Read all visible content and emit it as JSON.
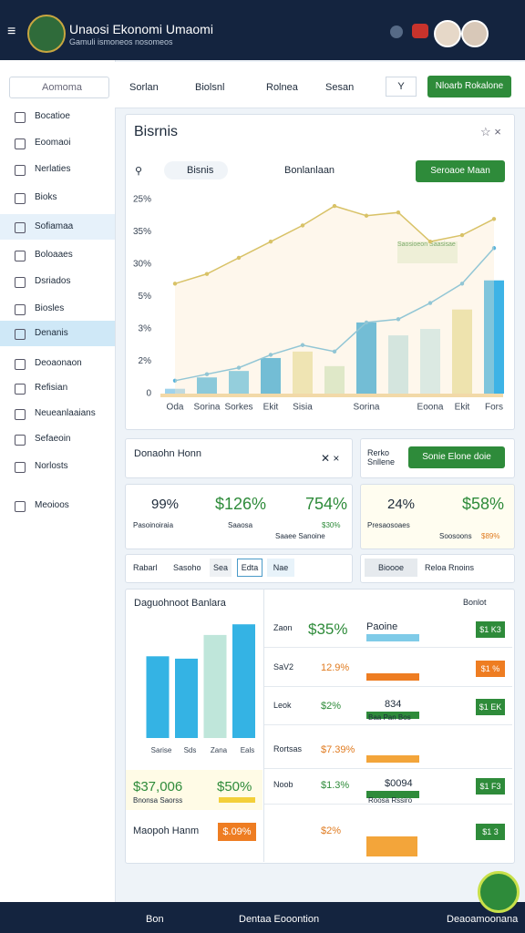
{
  "header": {
    "title": "Unaosi Ekonomi Umaomi",
    "subtitle": "Gamuli ismoneos nosomeos"
  },
  "sidebar": {
    "search": "Aomoma",
    "items": [
      "Bocatioe",
      "Eoomaoi",
      "Nerlaties",
      "Bioks",
      "Sofiamaa",
      "Boloaaes",
      "Dsriados",
      "Biosles",
      "Denanis",
      "Deoaonaon",
      "Refisian",
      "Neueanlaaians",
      "Sefaeoin",
      "Norlosts",
      "Meoioos"
    ]
  },
  "toolbar": {
    "tabs": [
      "Sorlan",
      "Biolsnl",
      "Rolnea",
      "Sesan"
    ],
    "select": "Y",
    "button": "Nloarb Rokalone"
  },
  "main_card": {
    "title": "Bisrnis",
    "chip": "Bisnis",
    "label": "Bonlanlaan",
    "button": "Seroaoe Maan",
    "annotation": "Saosioeon Saasisae"
  },
  "chart": {
    "type": "bar",
    "categories": [
      "Oda",
      "Sorina",
      "Sorkes",
      "Ekit",
      "Sisia",
      null,
      "Sorina",
      null,
      "Eoona",
      "Ekit",
      "Fors"
    ],
    "values": [
      0.15,
      0.5,
      0.7,
      1.1,
      1.3,
      0.85,
      2.2,
      1.8,
      2.0,
      2.6,
      3.5
    ],
    "colors": [
      "#9fd3ec",
      "#4fb8e3",
      "#5cc0e6",
      "#2aa7dc",
      "#e8e2a8",
      "#cfe8c8",
      "#2aa7dc",
      "#bfe3ea",
      "#c9eaf0",
      "#e6e0a0",
      "#3db3e6"
    ],
    "series": [
      {
        "name": "Bisnis",
        "color": "#5ab4dc",
        "values": [
          0.4,
          0.6,
          0.8,
          1.2,
          1.5,
          1.3,
          2.2,
          2.3,
          2.8,
          3.4,
          4.5
        ]
      },
      {
        "name": "Bonlanlaan",
        "color": "#d8c267",
        "values": [
          3.4,
          3.7,
          4.2,
          4.7,
          5.2,
          5.8,
          5.5,
          5.6,
          4.7,
          4.9,
          5.4
        ]
      }
    ],
    "ylim": [
      0,
      6
    ],
    "yticks": [
      {
        "value": 0,
        "label": "0"
      },
      {
        "value": 1,
        "label": "2%"
      },
      {
        "value": 2,
        "label": "3%"
      },
      {
        "value": 3,
        "label": "5%"
      },
      {
        "value": 4,
        "label": "30%"
      },
      {
        "value": 5,
        "label": "35%"
      },
      {
        "value": 6,
        "label": "25%"
      }
    ],
    "grid": false
  },
  "row1": {
    "left": "Donaohn Honn",
    "right": "Rerko Snllene",
    "button": "Sonie Elone doie"
  },
  "stats": {
    "a": "99%",
    "b": "$126%",
    "c": "754%",
    "a_sub": "Pasoinoiraia",
    "b_sub": "Saaosa",
    "c_sub": "Saaee Sanoine",
    "c_note": "$30%",
    "d": "24%",
    "e": "$58%",
    "d_sub": "Presaosoaes",
    "e_sub": "Soosoons",
    "e_note": "$89%"
  },
  "filters": {
    "label": "Rabarl",
    "chips": [
      "Sasoho",
      "Sea",
      "Edta",
      "Nae"
    ],
    "right_chip": "Bioooe",
    "right": "Reloa Rnoins"
  },
  "bottom_card": {
    "title": "Daguohnoot Banlara",
    "right": "Bonlot",
    "small_chart": {
      "type": "bar",
      "categories": [
        "Sarise",
        "Sds",
        "Zana",
        "Eals"
      ],
      "values": [
        0.69,
        0.67,
        0.87,
        0.96
      ],
      "colors": [
        "#34b3e4",
        "#34b3e4",
        "#bfe6da",
        "#34b3e4"
      ],
      "ylim": [
        0,
        1
      ]
    },
    "rows": [
      [
        "Zaon",
        "$35%",
        "Paoine",
        "$1 K3"
      ],
      [
        "SaV2",
        "12.9%",
        "",
        "$1 %"
      ],
      [
        "Leok",
        "$2%",
        "834",
        "$1 EK"
      ],
      [
        "Rortsas",
        "$7.39%",
        "",
        ""
      ],
      [
        "Noob",
        "$1.3%",
        "$0094",
        "$1 F3"
      ],
      [
        "",
        "$2%",
        "",
        "$1 3"
      ]
    ],
    "left_big": "$37,006",
    "left_pct": "$50%",
    "left_sub": "Bnonsa Saorss",
    "foot": "Maopoh Hanm",
    "foot_pct": "$.09%",
    "notes": [
      "Baa Pan Bos",
      "Roosa Rssiro"
    ]
  },
  "bottom_nav": [
    "Bon",
    "Dentaa Eooontion",
    "Deaoamoonana"
  ]
}
